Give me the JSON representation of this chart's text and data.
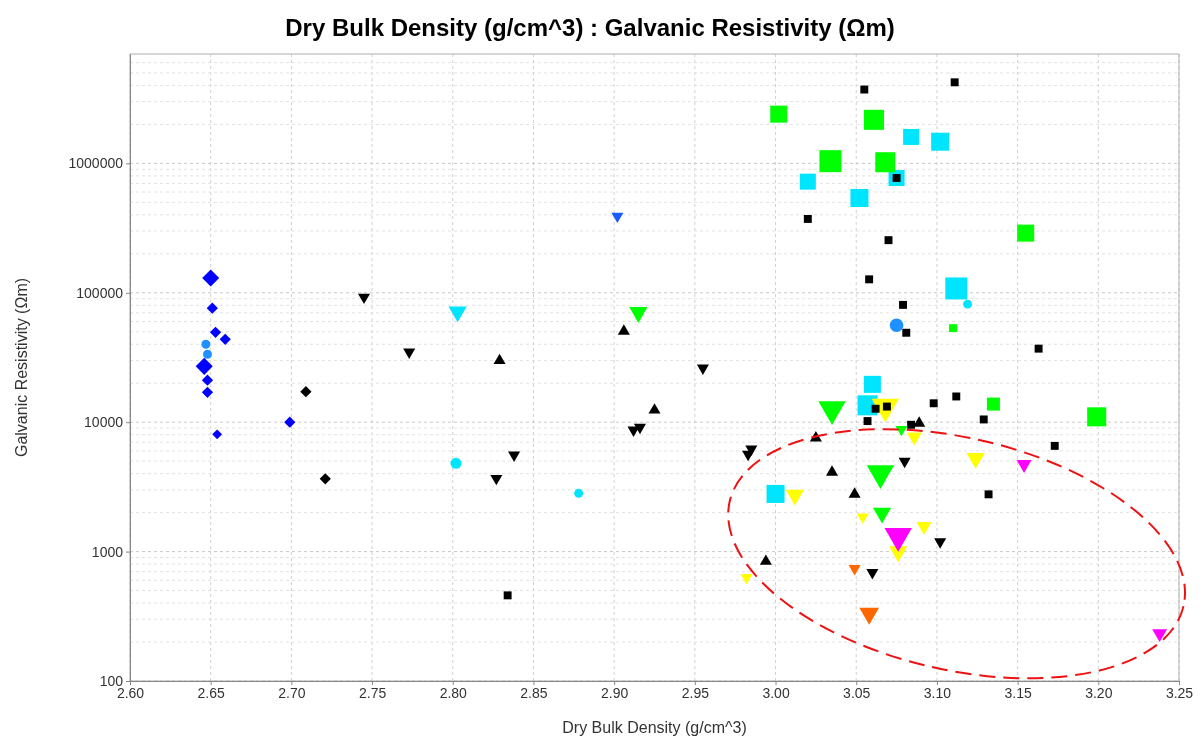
{
  "chart_data": {
    "type": "bubble",
    "title": "Dry Bulk Density (g/cm^3) : Galvanic Resistivity (Ωm)",
    "xlabel": "Dry Bulk Density (g/cm^3)",
    "ylabel": "Galvanic Resistivity (Ωm)",
    "log": "y",
    "grid": true,
    "xlim": [
      2.6,
      3.25
    ],
    "xticks": [
      {
        "value": 2.6,
        "label": "2.60"
      },
      {
        "value": 2.65,
        "label": "2.65"
      },
      {
        "value": 2.7,
        "label": "2.70"
      },
      {
        "value": 2.75,
        "label": "2.75"
      },
      {
        "value": 2.8,
        "label": "2.80"
      },
      {
        "value": 2.85,
        "label": "2.85"
      },
      {
        "value": 2.9,
        "label": "2.90"
      },
      {
        "value": 2.95,
        "label": "2.95"
      },
      {
        "value": 3.0,
        "label": "3.00"
      },
      {
        "value": 3.05,
        "label": "3.05"
      },
      {
        "value": 3.1,
        "label": "3.10"
      },
      {
        "value": 3.15,
        "label": "3.15"
      },
      {
        "value": 3.2,
        "label": "3.20"
      },
      {
        "value": 3.25,
        "label": "3.25"
      }
    ],
    "ylim": [
      100,
      7000000
    ],
    "yticks": [
      100,
      1000,
      10000,
      100000,
      1000000
    ],
    "series": [
      {
        "color": "#0000ff",
        "marker": "diamond",
        "x": [
          2.65,
          2.651,
          2.653,
          2.659,
          2.646,
          2.648,
          2.648,
          2.654,
          2.699
        ],
        "values": [
          130000,
          76000,
          49500,
          43700,
          27000,
          21100,
          17000,
          8050,
          10000
        ],
        "sizes": [
          0.3,
          0.13,
          0.13,
          0.13,
          0.3,
          0.13,
          0.13,
          0.1,
          0.13
        ]
      },
      {
        "color": "#1e90ff",
        "marker": "circle",
        "x": [
          2.647,
          2.648,
          3.075
        ],
        "values": [
          40000,
          33500,
          56100
        ],
        "sizes": [
          0.13,
          0.13,
          0.3
        ]
      },
      {
        "color": "#1a5cff",
        "marker": "triangle-down",
        "x": [
          2.902
        ],
        "values": [
          391000
        ],
        "sizes": [
          0.13
        ]
      },
      {
        "color": "#00e5ff",
        "marker": "triangle-down",
        "x": [
          2.803
        ],
        "values": [
          71400
        ],
        "sizes": [
          0.3
        ]
      },
      {
        "color": "#00e5ff",
        "marker": "circle",
        "x": [
          2.802,
          2.878,
          3.119
        ],
        "values": [
          4810,
          2820,
          81700
        ],
        "sizes": [
          0.2,
          0.13,
          0.13
        ]
      },
      {
        "color": "#00e5ff",
        "marker": "square",
        "x": [
          3.084,
          3.102,
          3.02,
          3.052,
          3.075,
          3.112,
          3.06,
          3.057,
          3.0
        ],
        "values": [
          1600000,
          1470000,
          722000,
          540000,
          770000,
          108000,
          19600,
          13500,
          2790
        ],
        "sizes": [
          0.53,
          0.67,
          0.53,
          0.67,
          0.53,
          1,
          0.6,
          0.83,
          0.67
        ]
      },
      {
        "color": "#00ff00",
        "marker": "square",
        "x": [
          3.002,
          3.061,
          3.034,
          3.068,
          3.155,
          3.11,
          3.135,
          3.199
        ],
        "values": [
          2400000,
          2170000,
          1040000,
          1020000,
          289000,
          53300,
          13800,
          11000
        ],
        "sizes": [
          0.6,
          0.83,
          1,
          0.83,
          0.6,
          0.13,
          0.35,
          0.75
        ]
      },
      {
        "color": "#00ff00",
        "marker": "triangle-down",
        "x": [
          2.915,
          3.035,
          3.065,
          3.078,
          3.066
        ],
        "values": [
          70600,
          12600,
          4030,
          8800,
          1990
        ],
        "sizes": [
          0.3,
          0.67,
          0.67,
          0.13,
          0.3
        ]
      },
      {
        "color": "#ffff00",
        "marker": "triangle-down",
        "x": [
          3.068,
          3.086,
          3.124,
          3.012,
          3.054,
          3.092,
          3.076,
          2.982
        ],
        "values": [
          13200,
          7700,
          5260,
          2740,
          1850,
          1570,
          1000,
          630
        ],
        "sizes": [
          0.67,
          0.2,
          0.3,
          0.3,
          0.13,
          0.2,
          0.3,
          0.13
        ]
      },
      {
        "color": "#ff00ff",
        "marker": "triangle-down",
        "x": [
          3.154,
          3.076,
          3.238
        ],
        "values": [
          4720,
          1320,
          233
        ],
        "sizes": [
          0.2,
          0.67,
          0.2
        ]
      },
      {
        "color": "#ff6600",
        "marker": "triangle-down",
        "x": [
          3.049,
          3.058
        ],
        "values": [
          741,
          333
        ],
        "sizes": [
          0.13,
          0.35
        ]
      },
      {
        "color": "#000000",
        "marker": "square",
        "x": [
          3.055,
          3.111,
          3.075,
          3.02,
          3.07,
          3.058,
          3.079,
          3.081,
          3.163,
          3.112,
          3.098,
          3.062,
          3.069,
          3.057,
          3.129,
          3.084,
          3.173,
          3.132,
          2.834
        ],
        "values": [
          3720000,
          4230000,
          770000,
          372000,
          255000,
          127000,
          80600,
          49100,
          37000,
          15800,
          14000,
          12700,
          13200,
          10200,
          10500,
          9550,
          6560,
          2770,
          459
        ],
        "sizes": [
          0.13,
          0.13,
          0.13,
          0.13,
          0.13,
          0.13,
          0.13,
          0.13,
          0.13,
          0.13,
          0.13,
          0.13,
          0.13,
          0.13,
          0.13,
          0.13,
          0.13,
          0.13,
          0.13
        ]
      },
      {
        "color": "#000000",
        "marker": "triangle",
        "x": [
          2.829,
          2.906,
          2.925,
          3.025,
          3.035,
          3.089,
          3.049,
          2.994
        ],
        "values": [
          29900,
          50500,
          12400,
          7550,
          4100,
          9820,
          2770,
          840
        ],
        "sizes": [
          0.13,
          0.13,
          0.13,
          0.13,
          0.13,
          0.13,
          0.13,
          0.13
        ]
      },
      {
        "color": "#000000",
        "marker": "diamond",
        "x": [
          2.709,
          2.721
        ],
        "values": [
          17200,
          3650
        ],
        "sizes": [
          0.13,
          0.13
        ]
      },
      {
        "color": "#000000",
        "marker": "triangle-down",
        "x": [
          2.745,
          2.773,
          2.838,
          2.827,
          2.955,
          2.912,
          2.916,
          2.983,
          2.985,
          3.08,
          3.102,
          3.06
        ],
        "values": [
          92500,
          34800,
          5570,
          3680,
          26200,
          8710,
          9140,
          5650,
          6210,
          4990,
          1190,
          690
        ],
        "sizes": [
          0.13,
          0.13,
          0.13,
          0.13,
          0.13,
          0.13,
          0.13,
          0.13,
          0.13,
          0.13,
          0.13,
          0.13
        ]
      }
    ]
  }
}
